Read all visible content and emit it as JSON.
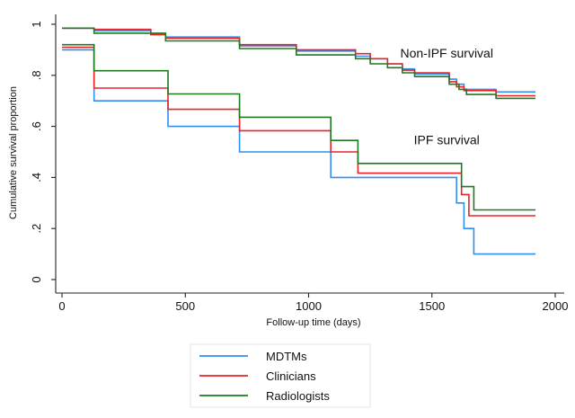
{
  "chart_data": {
    "type": "line",
    "step": true,
    "xlabel": "Follow-up time (days)",
    "ylabel": "Cumulative survival proportion",
    "xlim": [
      0,
      2000
    ],
    "ylim": [
      0,
      1
    ],
    "xticks": [
      0,
      500,
      1000,
      1500,
      2000
    ],
    "xtick_labels": [
      "0",
      "500",
      "1000",
      "1500",
      "2000"
    ],
    "yticks": [
      0,
      0.2,
      0.4,
      0.6,
      0.8,
      1
    ],
    "ytick_labels": [
      "0",
      ".2",
      ".4",
      ".6",
      ".8",
      "1"
    ],
    "grid": false,
    "legend_position": "bottom",
    "annotations": [
      {
        "text": "Non-IPF survival",
        "x": 1560,
        "y": 0.87
      },
      {
        "text": "IPF survival",
        "x": 1560,
        "y": 0.53
      }
    ],
    "series": [
      {
        "name": "MDTMs",
        "color": "#2f8ff0",
        "x": [
          0,
          130,
          130,
          430,
          430,
          720,
          720,
          1090,
          1090,
          1600,
          1600,
          1630,
          1630,
          1670,
          1670,
          1920
        ],
        "y": [
          0.9,
          0.9,
          0.7,
          0.7,
          0.6,
          0.6,
          0.5,
          0.5,
          0.4,
          0.4,
          0.3,
          0.3,
          0.2,
          0.2,
          0.1,
          0.1
        ],
        "group": "IPF survival"
      },
      {
        "name": "Clinicians",
        "color": "#e8232a",
        "x": [
          0,
          130,
          130,
          430,
          430,
          720,
          720,
          1090,
          1090,
          1200,
          1200,
          1620,
          1620,
          1650,
          1650,
          1920
        ],
        "y": [
          0.91,
          0.91,
          0.75,
          0.75,
          0.667,
          0.667,
          0.583,
          0.583,
          0.5,
          0.5,
          0.417,
          0.417,
          0.333,
          0.333,
          0.25,
          0.25
        ],
        "group": "IPF survival"
      },
      {
        "name": "Radiologists",
        "color": "#1f7a1f",
        "x": [
          0,
          130,
          130,
          430,
          430,
          720,
          720,
          1090,
          1090,
          1200,
          1200,
          1620,
          1620,
          1670,
          1670,
          1920
        ],
        "y": [
          0.92,
          0.92,
          0.818,
          0.818,
          0.727,
          0.727,
          0.636,
          0.636,
          0.545,
          0.545,
          0.455,
          0.455,
          0.364,
          0.364,
          0.273,
          0.273
        ],
        "group": "IPF survival"
      },
      {
        "name": "MDTMs",
        "color": "#2f8ff0",
        "x": [
          0,
          130,
          130,
          360,
          360,
          420,
          420,
          720,
          720,
          950,
          950,
          1190,
          1190,
          1250,
          1250,
          1320,
          1320,
          1380,
          1380,
          1430,
          1430,
          1570,
          1570,
          1600,
          1600,
          1630,
          1630,
          1760,
          1760,
          1920
        ],
        "y": [
          0.985,
          0.985,
          0.975,
          0.975,
          0.96,
          0.96,
          0.95,
          0.95,
          0.915,
          0.915,
          0.895,
          0.895,
          0.875,
          0.875,
          0.865,
          0.865,
          0.845,
          0.845,
          0.825,
          0.825,
          0.805,
          0.805,
          0.785,
          0.785,
          0.765,
          0.765,
          0.745,
          0.745,
          0.735,
          0.735
        ],
        "group": "Non-IPF survival"
      },
      {
        "name": "Clinicians",
        "color": "#e8232a",
        "x": [
          0,
          130,
          130,
          360,
          360,
          420,
          420,
          720,
          720,
          950,
          950,
          1190,
          1190,
          1250,
          1250,
          1320,
          1320,
          1380,
          1380,
          1430,
          1430,
          1570,
          1570,
          1600,
          1600,
          1630,
          1630,
          1760,
          1760,
          1920
        ],
        "y": [
          0.985,
          0.985,
          0.98,
          0.98,
          0.96,
          0.96,
          0.945,
          0.945,
          0.92,
          0.92,
          0.9,
          0.9,
          0.885,
          0.885,
          0.865,
          0.865,
          0.845,
          0.845,
          0.82,
          0.82,
          0.81,
          0.81,
          0.775,
          0.775,
          0.755,
          0.755,
          0.74,
          0.74,
          0.72,
          0.72
        ],
        "group": "Non-IPF survival"
      },
      {
        "name": "Radiologists",
        "color": "#1f7a1f",
        "x": [
          0,
          130,
          130,
          420,
          420,
          720,
          720,
          950,
          950,
          1190,
          1190,
          1250,
          1250,
          1320,
          1320,
          1380,
          1380,
          1430,
          1430,
          1570,
          1570,
          1610,
          1610,
          1640,
          1640,
          1760,
          1760,
          1920
        ],
        "y": [
          0.985,
          0.985,
          0.965,
          0.965,
          0.935,
          0.935,
          0.905,
          0.905,
          0.88,
          0.88,
          0.865,
          0.865,
          0.845,
          0.845,
          0.83,
          0.83,
          0.81,
          0.81,
          0.795,
          0.795,
          0.765,
          0.765,
          0.745,
          0.745,
          0.725,
          0.725,
          0.71,
          0.71
        ],
        "group": "Non-IPF survival"
      }
    ],
    "legend": [
      {
        "label": "MDTMs",
        "color": "#2f8ff0"
      },
      {
        "label": "Clinicians",
        "color": "#e8232a"
      },
      {
        "label": "Radiologists",
        "color": "#1f7a1f"
      }
    ]
  }
}
